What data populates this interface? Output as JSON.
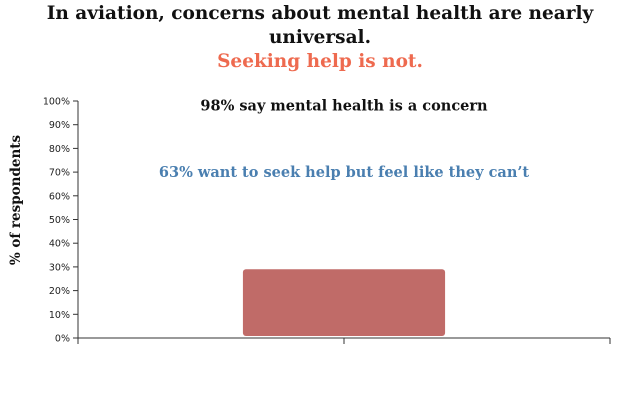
{
  "headline": {
    "line1": "In aviation, concerns about mental health are nearly universal.",
    "line2": "Seeking help is not."
  },
  "colors": {
    "headline_accent": "#ee6a4f",
    "bar": "#c06b68",
    "annotation_blue": "#4a7fb0",
    "text": "#111111"
  },
  "chart_data": {
    "type": "bar",
    "ylabel": "% of respondents",
    "xlabel": "",
    "ylim": [
      0,
      100
    ],
    "yticks": [
      "0%",
      "10%",
      "20%",
      "30%",
      "40%",
      "50%",
      "60%",
      "70%",
      "80%",
      "90%",
      "100%"
    ],
    "categories": [
      ""
    ],
    "values": [
      29
    ],
    "annotations": [
      {
        "text": "98% say mental health is a concern",
        "y": 98,
        "style": "top"
      },
      {
        "text": "63% want to seek help but feel like they can’t",
        "y": 70,
        "style": "mid"
      }
    ]
  }
}
